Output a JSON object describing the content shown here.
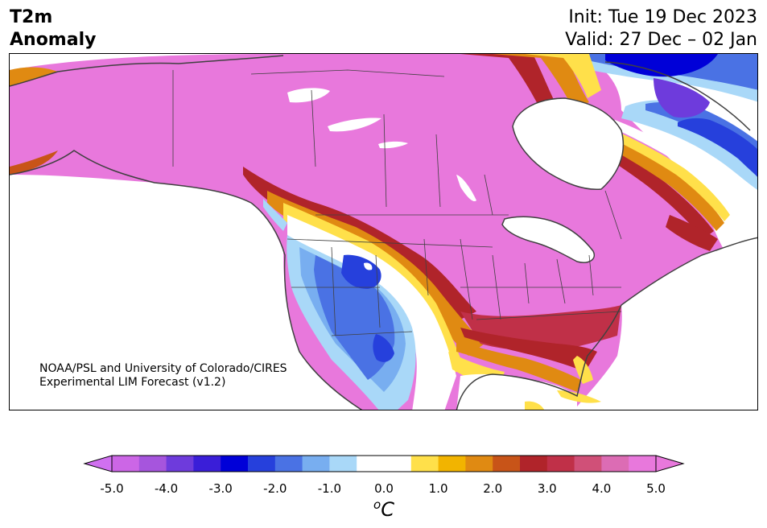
{
  "header": {
    "title_line1": "T2m",
    "title_line2": "Anomaly",
    "init_label": "Init: Tue 19 Dec 2023",
    "valid_label": "Valid: 27 Dec – 02 Jan"
  },
  "credit": {
    "line1": "NOAA/PSL and University of Colorado/CIRES",
    "line2": "Experimental LIM Forecast (v1.2)"
  },
  "colorbar": {
    "unit_symbol": "o",
    "unit_letter": "C",
    "ticks": [
      "-5.0",
      "-4.0",
      "-3.0",
      "-2.0",
      "-1.0",
      "0.0",
      "1.0",
      "2.0",
      "3.0",
      "4.0",
      "5.0"
    ],
    "colors": [
      "#cc66e6",
      "#a655dd",
      "#6e3bdc",
      "#3a1ed8",
      "#0000d8",
      "#2640dc",
      "#4a72e4",
      "#78aef0",
      "#a9d8f8",
      "#ffffff",
      "#ffffff",
      "#ffe04a",
      "#f2b400",
      "#e08a12",
      "#c85418",
      "#b0242a",
      "#c03048",
      "#d05078",
      "#dc6cb4",
      "#e878dc"
    ],
    "under_color": "#d070f0",
    "over_color": "#e878dc"
  },
  "map": {
    "colors": {
      "strong_warm": "#e878dc",
      "warm_red": "#b0242a",
      "warm_orange": "#e08a12",
      "warm_yellow": "#ffe04a",
      "cool_light": "#a9d8f8",
      "cool_mid": "#4a72e4",
      "cool_deep": "#2640dc",
      "water": "#ffffff",
      "border": "#404040"
    }
  }
}
